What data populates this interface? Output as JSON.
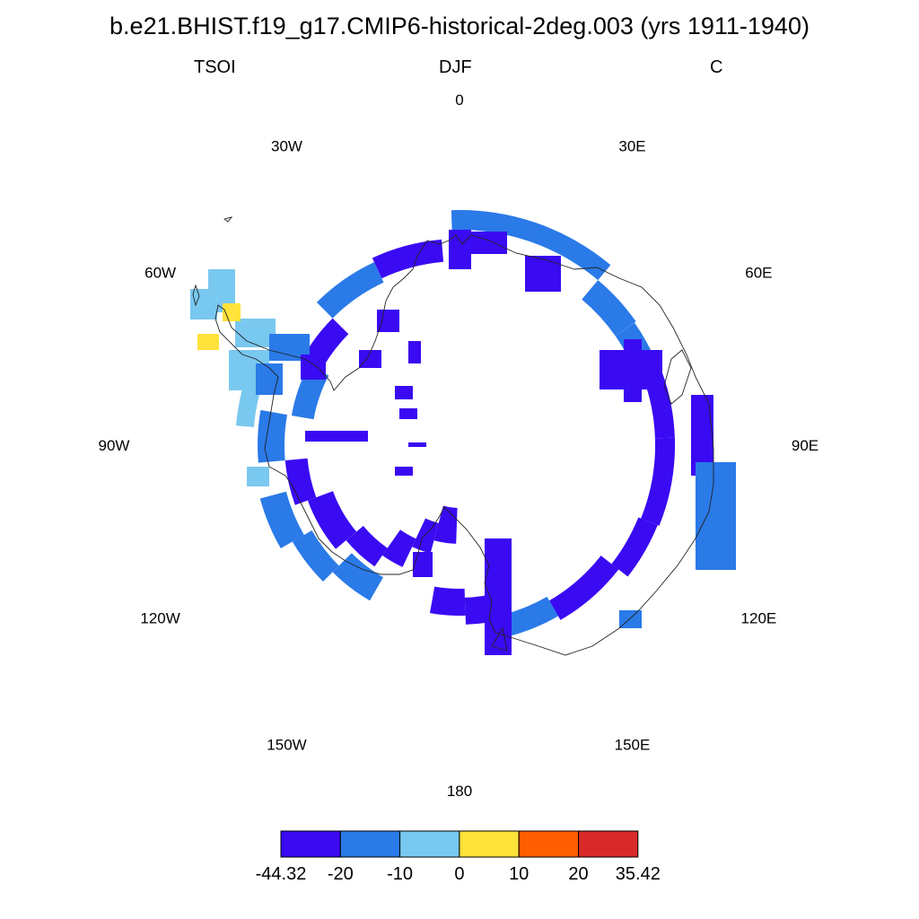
{
  "title": "b.e21.BHIST.f19_g17.CMIP6-historical-2deg.003 (yrs 1911-1940)",
  "subtitle_left": "TSOI",
  "subtitle_center": "DJF",
  "subtitle_right": "C",
  "lon_labels": [
    "0",
    "30E",
    "60E",
    "90E",
    "120E",
    "150E",
    "180",
    "150W",
    "120W",
    "90W",
    "60W",
    "30W"
  ],
  "colorbar": {
    "colors": [
      "#3a0af2",
      "#2a7ae8",
      "#79c8ef",
      "#ffe23a",
      "#ff5d00",
      "#d92a2a"
    ],
    "labels": [
      "-44.32",
      "-20",
      "-10",
      "0",
      "10",
      "20",
      "35.42"
    ]
  },
  "colors": {
    "deep_blue": "#3a0af2",
    "blue": "#2a7ae8",
    "light_blue": "#79c8ef",
    "yellow": "#ffe23a"
  }
}
